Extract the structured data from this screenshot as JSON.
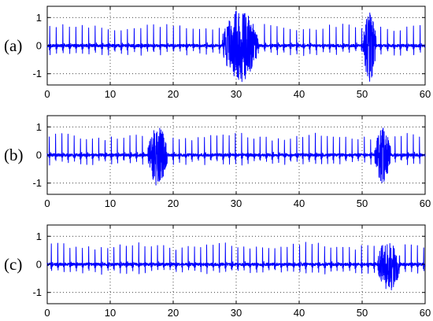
{
  "colors": {
    "signal": "#0000ff",
    "axes": "#000000",
    "background": "#ffffff"
  },
  "chart_data": [
    {
      "type": "line",
      "panel_label": "(a)",
      "grid": true,
      "xlim": [
        0,
        60
      ],
      "ylim": [
        -1.4,
        1.4
      ],
      "x_ticks": [
        0,
        10,
        20,
        30,
        40,
        50,
        60
      ],
      "y_ticks": [
        1,
        0,
        -1
      ],
      "x_tick_labels": [
        "0",
        "10",
        "20",
        "30",
        "40",
        "50",
        "60"
      ],
      "y_tick_labels": [
        "1",
        "0",
        "-1"
      ],
      "beat_interval": 1.03,
      "peak_amplitude_range": [
        0.5,
        0.8
      ],
      "trough_amplitude": -0.3,
      "noise_level": 0.05,
      "artifacts": [
        {
          "start": 27.8,
          "end": 33.5,
          "amplitude": 1.3
        },
        {
          "start": 50.2,
          "end": 52.2,
          "amplitude": 1.3
        }
      ]
    },
    {
      "type": "line",
      "panel_label": "(b)",
      "grid": true,
      "xlim": [
        0,
        60
      ],
      "ylim": [
        -1.4,
        1.4
      ],
      "x_ticks": [
        0,
        10,
        20,
        30,
        40,
        50,
        60
      ],
      "y_ticks": [
        1,
        0,
        -1
      ],
      "x_tick_labels": [
        "0",
        "10",
        "20",
        "30",
        "40",
        "50",
        "60"
      ],
      "y_tick_labels": [
        "1",
        "0",
        "-1"
      ],
      "beat_interval": 0.98,
      "peak_amplitude_range": [
        0.5,
        0.8
      ],
      "trough_amplitude": -0.3,
      "noise_level": 0.05,
      "artifacts": [
        {
          "start": 16.0,
          "end": 19.0,
          "amplitude": 1.1
        },
        {
          "start": 52.0,
          "end": 54.5,
          "amplitude": 1.0
        }
      ]
    },
    {
      "type": "line",
      "panel_label": "(c)",
      "grid": true,
      "xlim": [
        0,
        60
      ],
      "ylim": [
        -1.4,
        1.4
      ],
      "x_ticks": [
        0,
        10,
        20,
        30,
        40,
        50,
        60
      ],
      "y_ticks": [
        1,
        0,
        -1
      ],
      "x_tick_labels": [
        "0",
        "10",
        "20",
        "30",
        "40",
        "50",
        "60"
      ],
      "y_tick_labels": [
        "1",
        "0",
        "-1"
      ],
      "beat_interval": 0.99,
      "peak_amplitude_range": [
        0.5,
        0.8
      ],
      "trough_amplitude": -0.3,
      "noise_level": 0.05,
      "artifacts": [
        {
          "start": 52.5,
          "end": 56.0,
          "amplitude": 1.0
        }
      ]
    }
  ]
}
